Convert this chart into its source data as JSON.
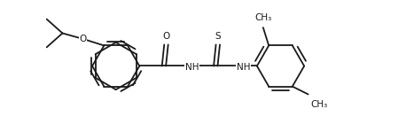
{
  "background": "#ffffff",
  "line_color": "#1a1a1a",
  "line_width": 1.3,
  "font_size": 7.5,
  "figsize": [
    4.58,
    1.49
  ],
  "dpi": 100,
  "xlim": [
    0.0,
    7.2
  ],
  "ylim": [
    -1.1,
    1.1
  ]
}
